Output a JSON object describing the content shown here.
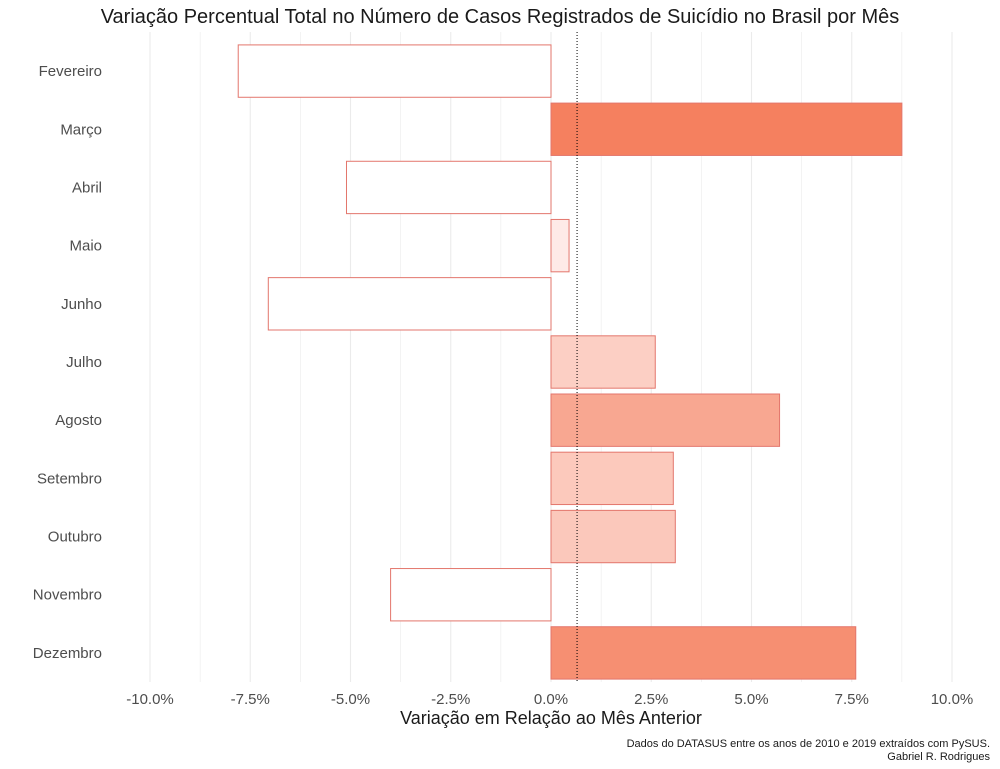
{
  "chart_data": {
    "type": "bar",
    "orientation": "horizontal",
    "title": "Variação Percentual Total no Número de Casos Registrados de Suicídio no Brasil por Mês",
    "xlabel": "Variação em Relação ao Mês Anterior",
    "ylabel": "",
    "categories": [
      "Fevereiro",
      "Março",
      "Abril",
      "Maio",
      "Junho",
      "Julho",
      "Agosto",
      "Setembro",
      "Outubro",
      "Novembro",
      "Dezembro"
    ],
    "values": [
      -7.8,
      8.75,
      -5.1,
      0.45,
      -7.05,
      2.6,
      5.7,
      3.05,
      3.1,
      -4.0,
      7.6
    ],
    "xlim": [
      -10,
      10
    ],
    "x_ticks": [
      -10,
      -7.5,
      -5,
      -2.5,
      0,
      2.5,
      5,
      7.5,
      10
    ],
    "x_tick_labels": [
      "-10.0%",
      "-7.5%",
      "-5.0%",
      "-2.5%",
      "0.0%",
      "2.5%",
      "5.0%",
      "7.5%",
      "10.0%"
    ],
    "reference_line": 0.65,
    "grid": true,
    "legend": "none",
    "colors": {
      "negative_fill": "#ffffff",
      "positive_low": "#fff0ee",
      "positive_high": "#f5805f",
      "bar_stroke": "#e3766c",
      "grid": "#ebebeb",
      "axis_text": "#4d4d4d"
    }
  },
  "caption": {
    "line1": "Dados do DATASUS entre os anos de 2010 e 2019 extraídos com PySUS.",
    "line2": "Gabriel R. Rodrigues"
  }
}
